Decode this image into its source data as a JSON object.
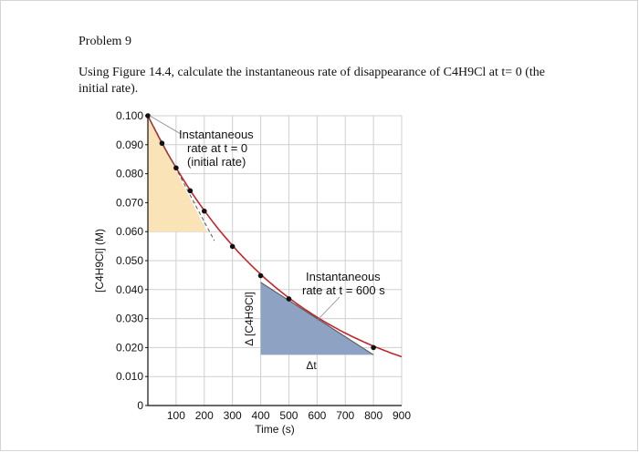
{
  "problem": {
    "title": "Problem 9",
    "question": "Using Figure 14.4, calculate the instantaneous rate of disappearance of C4H9Cl at t= 0 (the initial rate)."
  },
  "chart_data": {
    "type": "line",
    "xlabel": "Time (s)",
    "ylabel": "[C4H9Cl] (M)",
    "xlim": [
      0,
      900
    ],
    "ylim": [
      0,
      0.1
    ],
    "x_ticks": [
      "100",
      "200",
      "300",
      "400",
      "500",
      "600",
      "700",
      "800",
      "900"
    ],
    "y_ticks": [
      "0",
      "0.010",
      "0.020",
      "0.030",
      "0.040",
      "0.050",
      "0.060",
      "0.070",
      "0.080",
      "0.090",
      "0.100"
    ],
    "grid": true,
    "series": [
      {
        "color": "#c0272d",
        "points": [
          {
            "x": 0,
            "y": 0.1
          },
          {
            "x": 50,
            "y": 0.0905
          },
          {
            "x": 100,
            "y": 0.082
          },
          {
            "x": 150,
            "y": 0.0741
          },
          {
            "x": 200,
            "y": 0.0671
          },
          {
            "x": 300,
            "y": 0.0549
          },
          {
            "x": 400,
            "y": 0.0448
          },
          {
            "x": 500,
            "y": 0.0368
          },
          {
            "x": 800,
            "y": 0.02
          }
        ]
      }
    ],
    "tangents": [
      {
        "label": "Instantaneous rate at t = 0 (initial rate)",
        "label_lines": [
          "Instantaneous",
          "rate at t = 0",
          "(initial rate)"
        ],
        "from": {
          "x": 0,
          "y": 0.1
        },
        "to": {
          "x": 210,
          "y": 0.06
        },
        "fill": "#fbe3b8"
      },
      {
        "label": "Instantaneous rate at t = 600 s",
        "label_lines": [
          "Instantaneous",
          "rate at t = 600 s"
        ],
        "from": {
          "x": 400,
          "y": 0.0425
        },
        "to": {
          "x": 800,
          "y": 0.0175
        },
        "fill": "#8ea2c4"
      }
    ],
    "delta_labels": {
      "concentration": "Δ [C4H9Cl]",
      "time": "Δt"
    },
    "colors": {
      "curve": "#c0272d",
      "grid": "#cfcfcf",
      "tangent": "#555555"
    }
  }
}
